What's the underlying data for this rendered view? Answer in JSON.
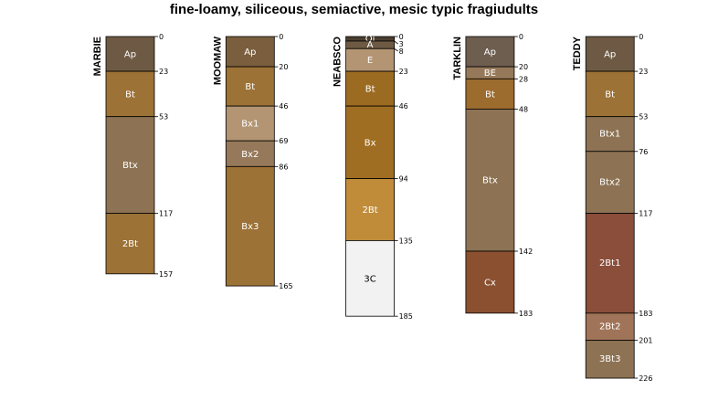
{
  "title": "fine-loamy, siliceous, semiactive, mesic typic fragiudults",
  "chart_data": {
    "type": "soil-profile-sketch",
    "title": "fine-loamy, siliceous, semiactive, mesic typic fragiudults",
    "depth_units": "cm",
    "profiles": [
      {
        "name": "MARBIE",
        "horizons": [
          {
            "name": "Ap",
            "top": 0,
            "bottom": 23,
            "color": "#6e5a44"
          },
          {
            "name": "Bt",
            "top": 23,
            "bottom": 53,
            "color": "#9c7236"
          },
          {
            "name": "Btx",
            "top": 53,
            "bottom": 117,
            "color": "#8d7354"
          },
          {
            "name": "2Bt",
            "top": 117,
            "bottom": 157,
            "color": "#9c7236"
          }
        ],
        "depth_labels": [
          "0",
          "23",
          "53",
          "117",
          "157"
        ]
      },
      {
        "name": "MOOMAW",
        "horizons": [
          {
            "name": "Ap",
            "top": 0,
            "bottom": 20,
            "color": "#7a5e3e"
          },
          {
            "name": "Bt",
            "top": 20,
            "bottom": 46,
            "color": "#9c7236"
          },
          {
            "name": "Bx1",
            "top": 46,
            "bottom": 69,
            "color": "#b39573"
          },
          {
            "name": "Bx2",
            "top": 69,
            "bottom": 86,
            "color": "#96795a"
          },
          {
            "name": "Bx3",
            "top": 86,
            "bottom": 165,
            "color": "#9c7236"
          }
        ],
        "depth_labels": [
          "0",
          "20",
          "46",
          "69",
          "86",
          "165"
        ]
      },
      {
        "name": "NEABSCO",
        "horizons": [
          {
            "name": "Oi",
            "top": 0,
            "bottom": 3,
            "color": "#4a3e30"
          },
          {
            "name": "A",
            "top": 3,
            "bottom": 8,
            "color": "#6e5a44"
          },
          {
            "name": "E",
            "top": 8,
            "bottom": 23,
            "color": "#b39573"
          },
          {
            "name": "Bt",
            "top": 23,
            "bottom": 46,
            "color": "#9c6b22"
          },
          {
            "name": "Bx",
            "top": 46,
            "bottom": 94,
            "color": "#a06e22"
          },
          {
            "name": "2Bt",
            "top": 94,
            "bottom": 135,
            "color": "#c08c3a"
          },
          {
            "name": "3C",
            "top": 135,
            "bottom": 185,
            "color": "#f2f2f2"
          }
        ],
        "depth_labels": [
          "0",
          "3",
          "8",
          "23",
          "46",
          "94",
          "135",
          "185"
        ]
      },
      {
        "name": "TARKLIN",
        "horizons": [
          {
            "name": "Ap",
            "top": 0,
            "bottom": 20,
            "color": "#6e5e50"
          },
          {
            "name": "BE",
            "top": 20,
            "bottom": 28,
            "color": "#96795a"
          },
          {
            "name": "Bt",
            "top": 28,
            "bottom": 48,
            "color": "#9c6b2e"
          },
          {
            "name": "Btx",
            "top": 48,
            "bottom": 142,
            "color": "#8d7354"
          },
          {
            "name": "Cx",
            "top": 142,
            "bottom": 183,
            "color": "#8a5030"
          }
        ],
        "depth_labels": [
          "0",
          "20",
          "28",
          "48",
          "142",
          "183"
        ]
      },
      {
        "name": "TEDDY",
        "horizons": [
          {
            "name": "Ap",
            "top": 0,
            "bottom": 23,
            "color": "#6e5a44"
          },
          {
            "name": "Bt",
            "top": 23,
            "bottom": 53,
            "color": "#9c7236"
          },
          {
            "name": "Btx1",
            "top": 53,
            "bottom": 76,
            "color": "#8d7354"
          },
          {
            "name": "Btx2",
            "top": 76,
            "bottom": 117,
            "color": "#8d7354"
          },
          {
            "name": "2Bt1",
            "top": 117,
            "bottom": 183,
            "color": "#8a4e3a"
          },
          {
            "name": "2Bt2",
            "top": 183,
            "bottom": 201,
            "color": "#a07458"
          },
          {
            "name": "3Bt3",
            "top": 201,
            "bottom": 226,
            "color": "#8d7354"
          }
        ],
        "depth_labels": [
          "0",
          "23",
          "53",
          "76",
          "117",
          "183",
          "201",
          "226"
        ]
      }
    ]
  }
}
